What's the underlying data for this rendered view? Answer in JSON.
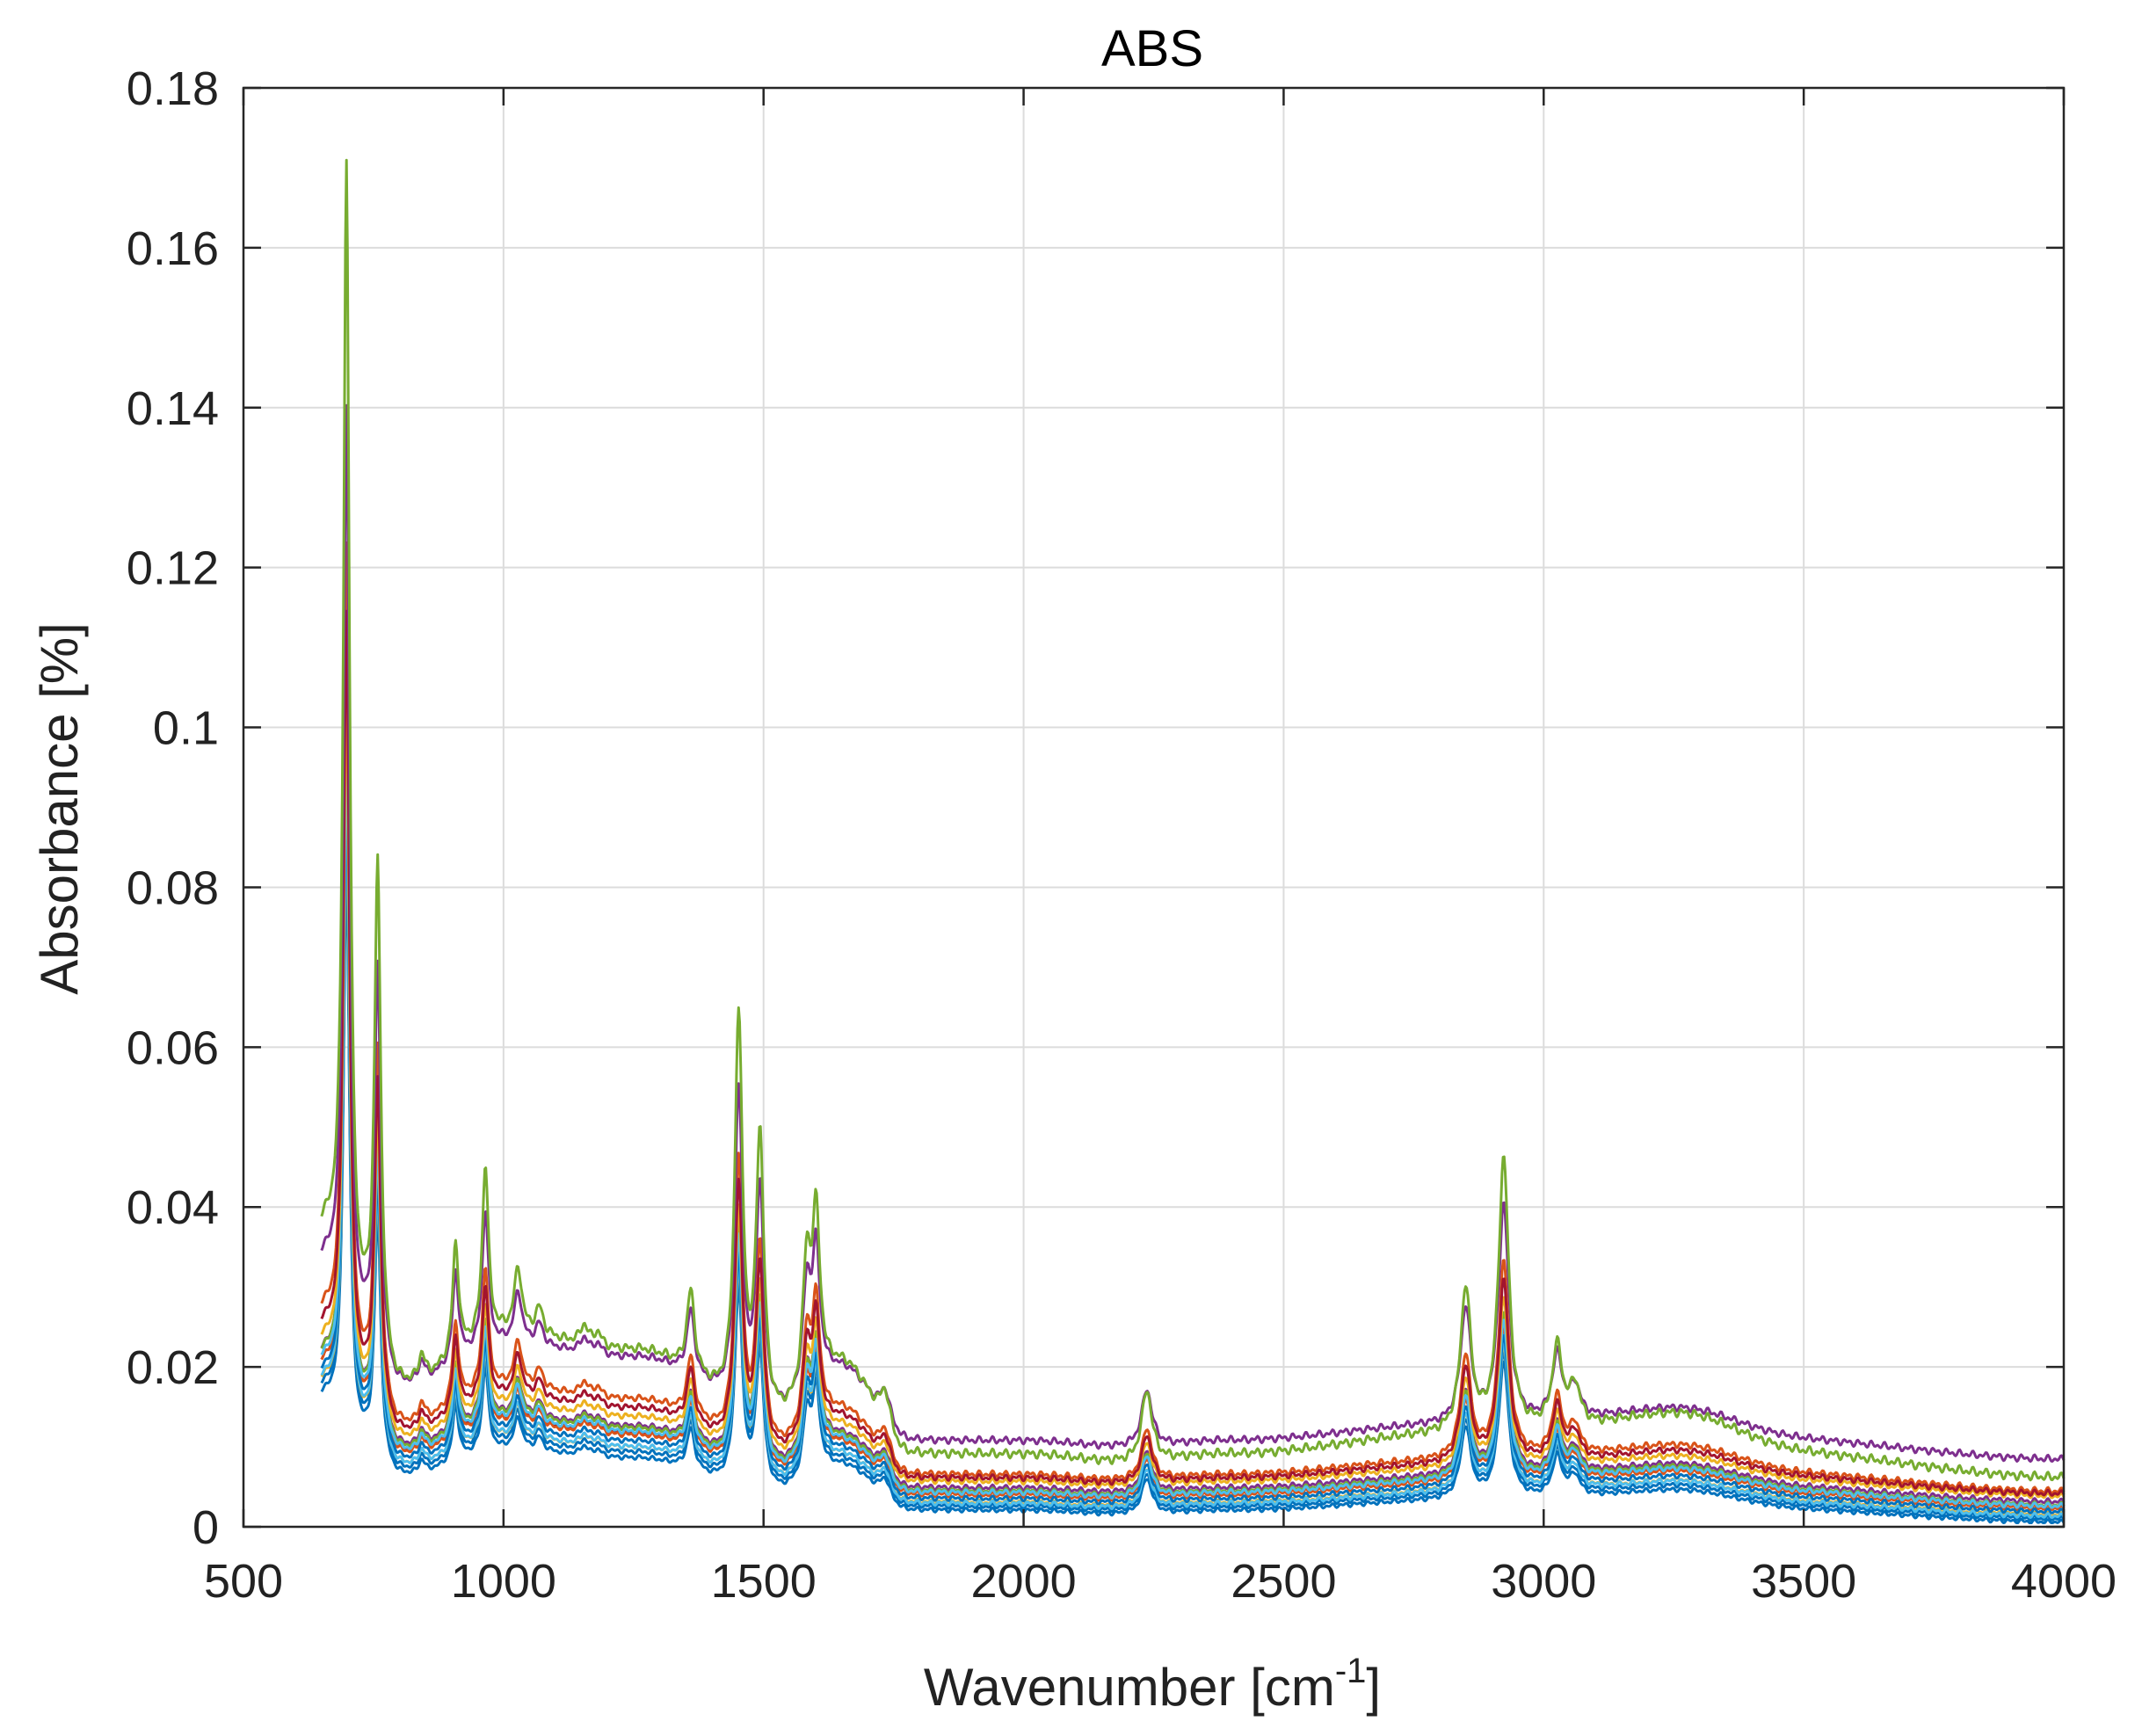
{
  "chart_data": {
    "type": "line",
    "title": "ABS",
    "xlabel_main": "Wavenumber [cm",
    "xlabel_sup": "-1",
    "xlabel_end": "]",
    "ylabel": "Absorbance [%]",
    "xlim": [
      500,
      4000
    ],
    "ylim": [
      0,
      0.18
    ],
    "xticks": [
      500,
      1000,
      1500,
      2000,
      2500,
      3000,
      3500,
      4000
    ],
    "xtick_labels": [
      "500",
      "1000",
      "1500",
      "2000",
      "2500",
      "3000",
      "3500",
      "4000"
    ],
    "yticks": [
      0,
      0.02,
      0.04,
      0.06,
      0.08,
      0.1,
      0.12,
      0.14,
      0.16,
      0.18
    ],
    "ytick_labels": [
      "0",
      "0.02",
      "0.04",
      "0.06",
      "0.08",
      "0.1",
      "0.12",
      "0.14",
      "0.16",
      "0.18"
    ],
    "grid": true,
    "legend": "none",
    "x_range_of_data": [
      650,
      4000
    ],
    "reference_peaks": [
      {
        "x": 698,
        "y": 0.17
      },
      {
        "x": 758,
        "y": 0.082
      },
      {
        "x": 843,
        "y": 0.021
      },
      {
        "x": 908,
        "y": 0.035
      },
      {
        "x": 965,
        "y": 0.045
      },
      {
        "x": 1028,
        "y": 0.032
      },
      {
        "x": 1069,
        "y": 0.027
      },
      {
        "x": 1155,
        "y": 0.025
      },
      {
        "x": 1181,
        "y": 0.024
      },
      {
        "x": 1360,
        "y": 0.029
      },
      {
        "x": 1452,
        "y": 0.063
      },
      {
        "x": 1493,
        "y": 0.048
      },
      {
        "x": 1583,
        "y": 0.032
      },
      {
        "x": 1601,
        "y": 0.038
      },
      {
        "x": 1734,
        "y": 0.017
      },
      {
        "x": 2237,
        "y": 0.017
      },
      {
        "x": 2850,
        "y": 0.029
      },
      {
        "x": 2923,
        "y": 0.045
      },
      {
        "x": 3026,
        "y": 0.021
      },
      {
        "x": 3060,
        "y": 0.016
      },
      {
        "x": 3290,
        "y": 0.014
      }
    ],
    "reference_baseline": [
      {
        "x": 650,
        "y": 0.036
      },
      {
        "x": 730,
        "y": 0.024
      },
      {
        "x": 800,
        "y": 0.017
      },
      {
        "x": 1000,
        "y": 0.024
      },
      {
        "x": 1250,
        "y": 0.022
      },
      {
        "x": 1520,
        "y": 0.013
      },
      {
        "x": 1650,
        "y": 0.02
      },
      {
        "x": 1780,
        "y": 0.009
      },
      {
        "x": 2000,
        "y": 0.009
      },
      {
        "x": 2200,
        "y": 0.008
      },
      {
        "x": 2400,
        "y": 0.009
      },
      {
        "x": 2800,
        "y": 0.011
      },
      {
        "x": 3120,
        "y": 0.011
      },
      {
        "x": 3500,
        "y": 0.008
      },
      {
        "x": 4000,
        "y": 0.006
      }
    ],
    "series": [
      {
        "color": "#77AC30",
        "scale": 1.0,
        "offset": 0.0
      },
      {
        "color": "#7E2F8E",
        "scale": 0.8,
        "offset": 0.0035
      },
      {
        "color": "#A2142F",
        "scale": 0.67,
        "offset": 0.0
      },
      {
        "color": "#D95319",
        "scale": 0.72,
        "offset": 0.0
      },
      {
        "color": "#EDB120",
        "scale": 0.62,
        "offset": 0.0
      },
      {
        "color": "#4DBEEE",
        "scale": 0.58,
        "offset": -0.001
      },
      {
        "color": "#0072BD",
        "scale": 0.55,
        "offset": -0.0015
      },
      {
        "color": "#77AC30",
        "scale": 0.6,
        "offset": -0.001
      },
      {
        "color": "#7E2F8E",
        "scale": 0.59,
        "offset": -0.0005
      },
      {
        "color": "#D95319",
        "scale": 0.57,
        "offset": -0.0012
      },
      {
        "color": "#A2142F",
        "scale": 0.56,
        "offset": -0.0008
      },
      {
        "color": "#4DBEEE",
        "scale": 0.54,
        "offset": -0.002
      },
      {
        "color": "#EDB120",
        "scale": 0.53,
        "offset": -0.0018
      },
      {
        "color": "#0072BD",
        "scale": 0.52,
        "offset": -0.0022
      },
      {
        "color": "#0072BD",
        "scale": 0.5,
        "offset": -0.0025
      }
    ]
  }
}
